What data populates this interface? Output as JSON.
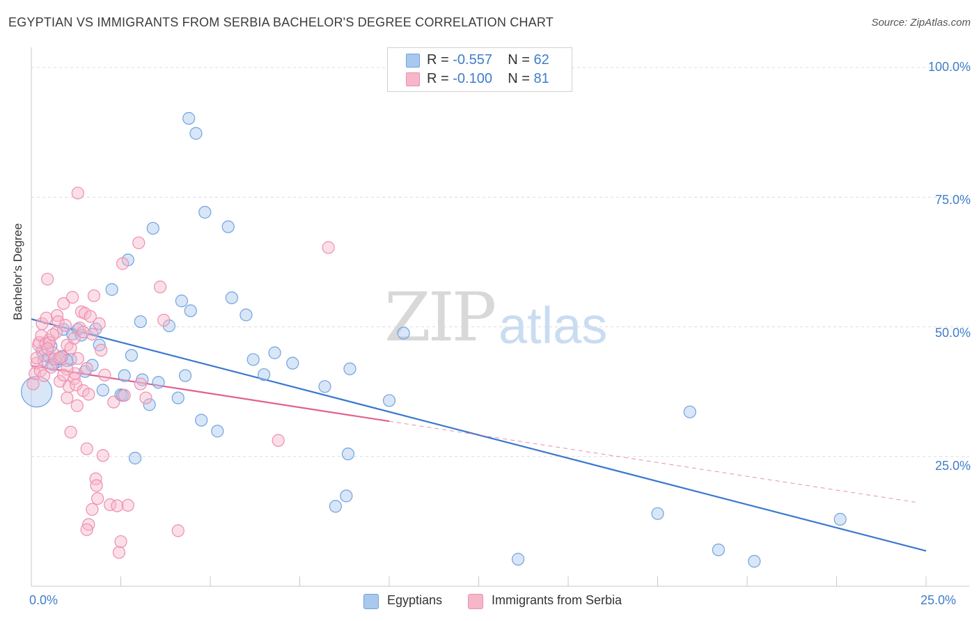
{
  "title": "EGYPTIAN VS IMMIGRANTS FROM SERBIA BACHELOR'S DEGREE CORRELATION CHART",
  "source": "Source: ZipAtlas.com",
  "watermark": {
    "zip": "ZIP",
    "atlas": "atlas"
  },
  "legend_top": {
    "rows": [
      {
        "r_label": "R = ",
        "r_value": "-0.557",
        "n_label": "N = ",
        "n_value": "62",
        "color": "#a9c8ee"
      },
      {
        "r_label": "R = ",
        "r_value": "-0.100",
        "n_label": "N = ",
        "n_value": "81",
        "color": "#f6b7c9"
      }
    ]
  },
  "legend_bottom": {
    "items": [
      {
        "label": "Egyptians",
        "color": "#a9c8ee"
      },
      {
        "label": "Immigrants from Serbia",
        "color": "#f6b7c9"
      }
    ]
  },
  "chart_data": {
    "type": "scatter",
    "title": "EGYPTIAN VS IMMIGRANTS FROM SERBIA BACHELOR'S DEGREE CORRELATION CHART",
    "xlabel": "",
    "ylabel": "Bachelor's Degree",
    "xlim": [
      0,
      25
    ],
    "ylim": [
      0,
      100
    ],
    "x_tick_labels": [
      "0.0%",
      "25.0%"
    ],
    "y_tick_labels": [
      "100.0%",
      "75.0%",
      "50.0%",
      "25.0%"
    ],
    "y_ticks": [
      100,
      75,
      50,
      25
    ],
    "grid": true,
    "series": [
      {
        "name": "Egyptians",
        "color": "#6fa3e0",
        "fill": "#a9c8ee",
        "trend": {
          "x": [
            0,
            25
          ],
          "y": [
            51.5,
            6.8
          ],
          "color": "#3a78cf"
        },
        "points": [
          [
            0.15,
            37.5,
            1
          ],
          [
            0.3,
            45.3,
            0
          ],
          [
            0.35,
            43.5,
            0
          ],
          [
            0.5,
            44.2,
            0
          ],
          [
            0.55,
            46.3,
            0
          ],
          [
            0.7,
            43.2,
            0
          ],
          [
            0.75,
            43.8,
            0
          ],
          [
            0.85,
            44.3,
            0
          ],
          [
            0.9,
            49.5,
            0
          ],
          [
            1.1,
            43.7,
            0
          ],
          [
            1.15,
            48.6,
            0
          ],
          [
            1.3,
            49.5,
            0
          ],
          [
            1.4,
            48.4,
            0
          ],
          [
            1.5,
            41.4,
            0
          ],
          [
            1.7,
            42.6,
            0
          ],
          [
            1.8,
            49.6,
            0
          ],
          [
            1.9,
            46.5,
            0
          ],
          [
            2.0,
            37.8,
            0
          ],
          [
            2.25,
            57.2,
            0
          ],
          [
            2.5,
            36.9,
            0
          ],
          [
            2.6,
            40.6,
            0
          ],
          [
            2.7,
            62.9,
            0
          ],
          [
            2.8,
            44.5,
            0
          ],
          [
            2.9,
            24.7,
            0
          ],
          [
            3.05,
            51.0,
            0
          ],
          [
            3.1,
            39.8,
            0
          ],
          [
            3.3,
            35.0,
            0
          ],
          [
            3.4,
            69.0,
            0
          ],
          [
            3.55,
            39.3,
            0
          ],
          [
            3.85,
            50.2,
            0
          ],
          [
            4.1,
            36.3,
            0
          ],
          [
            4.2,
            55.0,
            0
          ],
          [
            4.3,
            40.6,
            0
          ],
          [
            4.4,
            90.2,
            0
          ],
          [
            4.45,
            53.1,
            0
          ],
          [
            4.6,
            87.3,
            0
          ],
          [
            4.75,
            32.0,
            0
          ],
          [
            4.85,
            72.1,
            0
          ],
          [
            5.2,
            29.9,
            0
          ],
          [
            5.5,
            69.3,
            0
          ],
          [
            5.6,
            55.6,
            0
          ],
          [
            6.0,
            52.3,
            0
          ],
          [
            6.2,
            43.7,
            0
          ],
          [
            6.5,
            40.8,
            0
          ],
          [
            6.8,
            45.0,
            0
          ],
          [
            7.3,
            43.0,
            0
          ],
          [
            8.2,
            38.5,
            0
          ],
          [
            8.5,
            15.4,
            0
          ],
          [
            8.9,
            41.9,
            0
          ],
          [
            8.8,
            17.4,
            0
          ],
          [
            8.85,
            25.5,
            0
          ],
          [
            10.0,
            35.8,
            0
          ],
          [
            10.4,
            48.8,
            0
          ],
          [
            13.6,
            5.2,
            0
          ],
          [
            17.5,
            14.0,
            0
          ],
          [
            18.4,
            33.6,
            0
          ],
          [
            19.2,
            7.0,
            0
          ],
          [
            20.2,
            4.8,
            0
          ],
          [
            22.6,
            12.9,
            0
          ],
          [
            0.6,
            42.7,
            0
          ],
          [
            1.0,
            43.5,
            0
          ],
          [
            2.55,
            36.8,
            0
          ]
        ]
      },
      {
        "name": "Immigrants from Serbia",
        "color": "#ef8db0",
        "fill": "#f6b7c9",
        "trend": {
          "x": [
            0,
            10
          ],
          "y": [
            42.5,
            31.8
          ],
          "color": "#e0608e"
        },
        "trend_extension": {
          "x": [
            10,
            24.7
          ],
          "y": [
            31.8,
            16.2
          ]
        },
        "points": [
          [
            0.05,
            39.0,
            0
          ],
          [
            0.1,
            41.0,
            0
          ],
          [
            0.15,
            43.0,
            0
          ],
          [
            0.2,
            46.5,
            0
          ],
          [
            0.22,
            47.0,
            0
          ],
          [
            0.28,
            48.3,
            0
          ],
          [
            0.3,
            50.6,
            0
          ],
          [
            0.35,
            44.5,
            0
          ],
          [
            0.4,
            46.8,
            0
          ],
          [
            0.42,
            51.7,
            0
          ],
          [
            0.45,
            59.2,
            0
          ],
          [
            0.5,
            47.5,
            0
          ],
          [
            0.55,
            42.2,
            0
          ],
          [
            0.6,
            45.0,
            0
          ],
          [
            0.65,
            43.8,
            0
          ],
          [
            0.7,
            49.0,
            0
          ],
          [
            0.72,
            52.2,
            0
          ],
          [
            0.75,
            51.0,
            0
          ],
          [
            0.8,
            39.5,
            0
          ],
          [
            0.85,
            44.2,
            0
          ],
          [
            0.9,
            54.5,
            0
          ],
          [
            0.95,
            50.3,
            0
          ],
          [
            1.0,
            46.5,
            0
          ],
          [
            1.0,
            36.3,
            0
          ],
          [
            1.05,
            38.5,
            0
          ],
          [
            1.1,
            29.7,
            0
          ],
          [
            1.15,
            55.7,
            0
          ],
          [
            1.2,
            40.0,
            0
          ],
          [
            1.22,
            41.0,
            0
          ],
          [
            1.25,
            38.8,
            0
          ],
          [
            1.28,
            34.8,
            0
          ],
          [
            1.3,
            75.8,
            0
          ],
          [
            1.35,
            49.8,
            0
          ],
          [
            1.4,
            52.9,
            0
          ],
          [
            1.45,
            37.7,
            0
          ],
          [
            1.5,
            52.6,
            0
          ],
          [
            1.55,
            26.5,
            0
          ],
          [
            1.6,
            37.0,
            0
          ],
          [
            1.65,
            52.0,
            0
          ],
          [
            1.7,
            48.6,
            0
          ],
          [
            1.75,
            56.0,
            0
          ],
          [
            1.8,
            20.7,
            0
          ],
          [
            1.82,
            19.4,
            0
          ],
          [
            1.9,
            50.6,
            0
          ],
          [
            1.95,
            45.5,
            0
          ],
          [
            2.0,
            25.2,
            0
          ],
          [
            2.05,
            40.7,
            0
          ],
          [
            1.6,
            11.9,
            0
          ],
          [
            1.55,
            10.9,
            0
          ],
          [
            1.7,
            14.8,
            0
          ],
          [
            1.85,
            16.9,
            0
          ],
          [
            2.2,
            15.7,
            0
          ],
          [
            2.3,
            35.5,
            0
          ],
          [
            2.4,
            15.5,
            0
          ],
          [
            2.45,
            6.5,
            0
          ],
          [
            2.5,
            8.6,
            0
          ],
          [
            2.55,
            62.2,
            0
          ],
          [
            2.7,
            15.6,
            0
          ],
          [
            2.6,
            36.8,
            0
          ],
          [
            3.0,
            66.2,
            0
          ],
          [
            3.05,
            39.0,
            0
          ],
          [
            3.2,
            36.3,
            0
          ],
          [
            3.6,
            57.7,
            0
          ],
          [
            3.7,
            51.3,
            0
          ],
          [
            4.1,
            10.7,
            0
          ],
          [
            6.9,
            28.1,
            0
          ],
          [
            8.3,
            65.3,
            0
          ],
          [
            0.25,
            41.5,
            0
          ],
          [
            0.35,
            40.6,
            0
          ],
          [
            0.5,
            47.0,
            0
          ],
          [
            0.6,
            48.5,
            0
          ],
          [
            0.8,
            44.0,
            0
          ],
          [
            1.0,
            41.8,
            0
          ],
          [
            1.1,
            45.9,
            0
          ],
          [
            1.2,
            47.8,
            0
          ],
          [
            1.3,
            43.9,
            0
          ],
          [
            1.45,
            49.0,
            0
          ],
          [
            1.55,
            42.0,
            0
          ],
          [
            0.15,
            44.0,
            0
          ],
          [
            0.45,
            45.8,
            0
          ],
          [
            0.9,
            40.7,
            0
          ]
        ]
      }
    ]
  }
}
